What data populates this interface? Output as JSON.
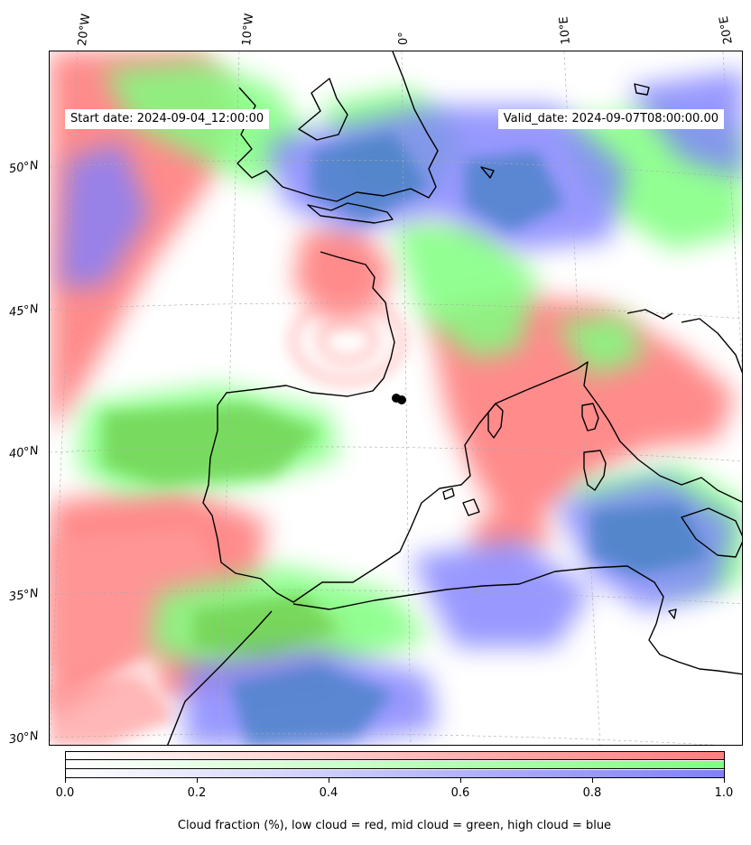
{
  "header": {
    "start_date": "Start date: 2024-09-04_12:00:00",
    "valid_date": "Valid_date: 2024-09-07T08:00:00.00"
  },
  "map": {
    "longitude_labels": [
      "20°W",
      "10°W",
      "0°",
      "10°E",
      "20°E"
    ],
    "latitude_labels": [
      "50°N",
      "45°N",
      "40°N",
      "35°N",
      "30°N"
    ],
    "colors": {
      "low_cloud": "#ff7f7f",
      "mid_cloud": "#7fff7f",
      "high_cloud": "#7f7fff",
      "coastline": "#000000"
    },
    "marker": "black dot"
  },
  "colorbar": {
    "ticks": [
      "0.0",
      "0.2",
      "0.4",
      "0.6",
      "0.8",
      "1.0"
    ],
    "caption": "Cloud fraction (%), low cloud = red, mid cloud = green, high cloud = blue"
  }
}
